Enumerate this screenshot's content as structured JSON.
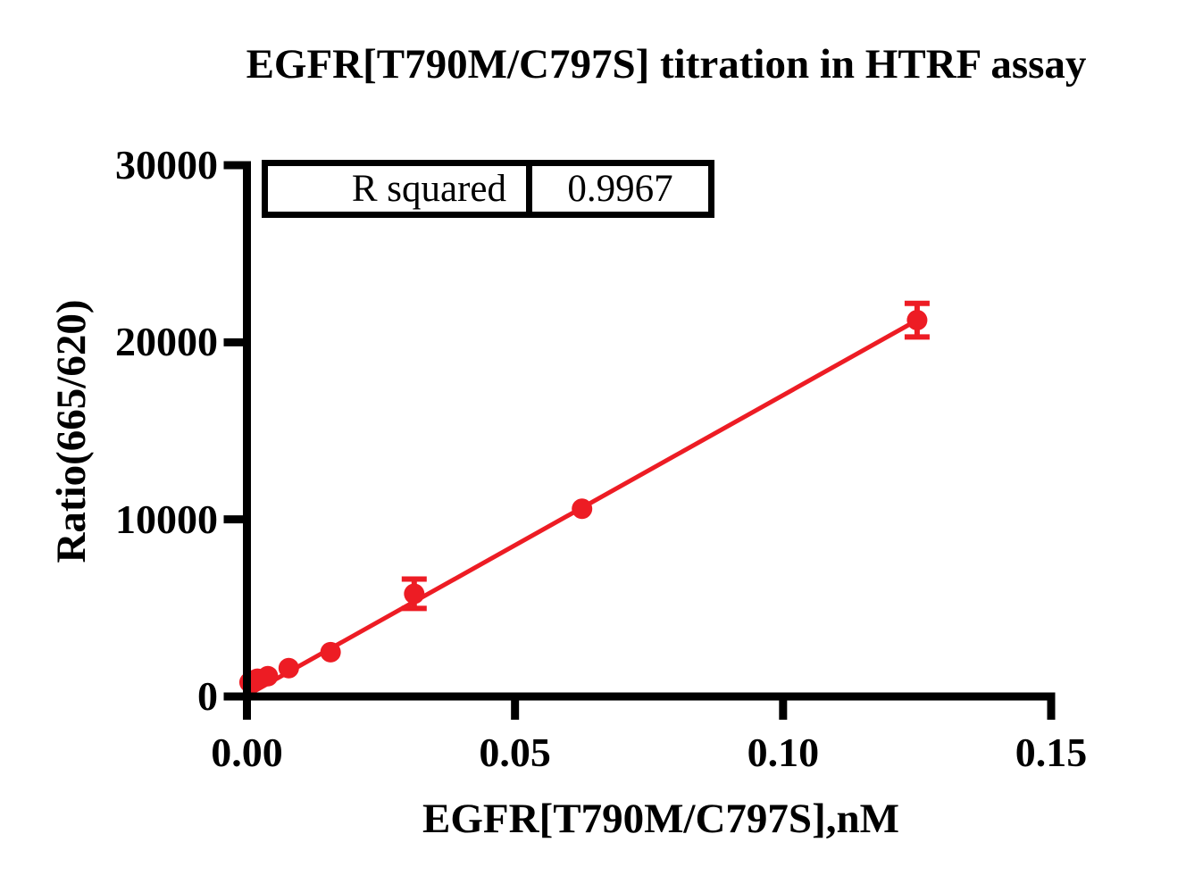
{
  "title": "EGFR[T790M/C797S] titration in HTRF assay",
  "stats_table": {
    "rows": [
      {
        "label": "R squared",
        "value": "0.9967"
      }
    ]
  },
  "chart_data": {
    "type": "scatter",
    "title": "EGFR[T790M/C797S] titration in HTRF assay",
    "xlabel": "EGFR[T790M/C797S],nM",
    "ylabel": "Ratio(665/620)",
    "xlim": [
      0,
      0.15
    ],
    "ylim": [
      0,
      30000
    ],
    "x_ticks": [
      0,
      0.05,
      0.1,
      0.15
    ],
    "x_tick_labels": [
      "0.00",
      "0.05",
      "0.10",
      "0.15"
    ],
    "y_ticks": [
      0,
      10000,
      20000,
      30000
    ],
    "y_tick_labels": [
      "0",
      "10000",
      "20000",
      "30000"
    ],
    "grid": false,
    "legend": false,
    "axis_color": "#000000",
    "series": [
      {
        "color": "#ED1C24",
        "marker": "circle",
        "x": [
          0.00049,
          0.00098,
          0.00195,
          0.0039,
          0.0078,
          0.0156,
          0.0312,
          0.0625,
          0.125
        ],
        "y": [
          800,
          900,
          1000,
          1150,
          1600,
          2500,
          5800,
          10600,
          21250
        ],
        "y_err": [
          0,
          0,
          0,
          0,
          0,
          0,
          830,
          0,
          950
        ]
      }
    ],
    "trendline": {
      "color": "#ED1C24",
      "x_start": 0.0005,
      "y_start": 150,
      "x_end": 0.125,
      "y_end": 21250
    },
    "r_squared": "0.9967"
  }
}
